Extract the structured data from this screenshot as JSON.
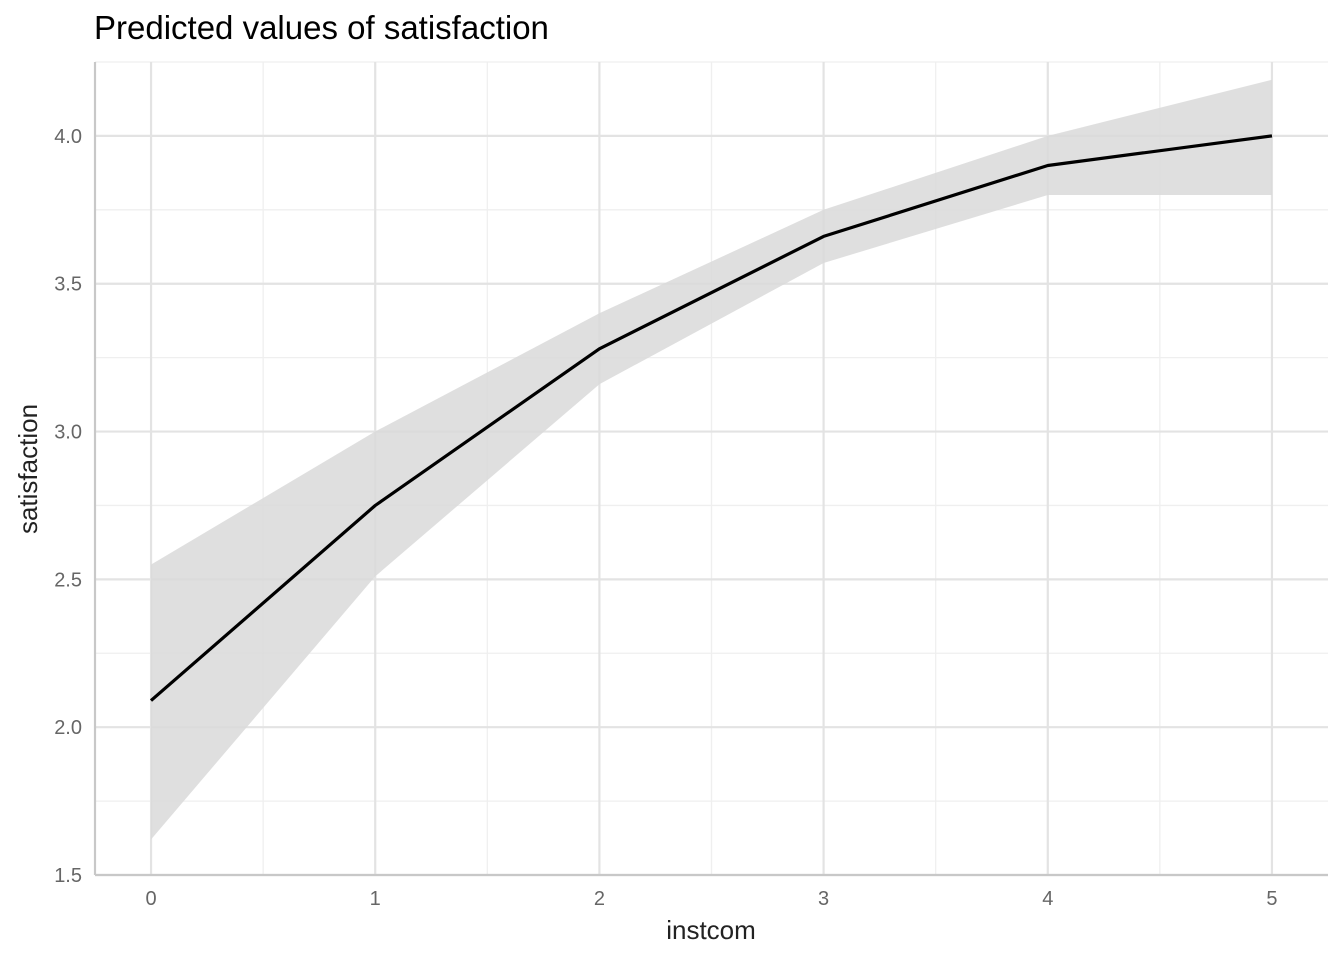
{
  "chart_data": {
    "type": "line",
    "title": "Predicted values of satisfaction",
    "xlabel": "instcom",
    "ylabel": "satisfaction",
    "x": [
      0,
      1,
      2,
      3,
      4,
      5
    ],
    "series": [
      {
        "values": [
          2.09,
          2.75,
          3.28,
          3.66,
          3.9,
          4.0
        ],
        "ci_lower": [
          1.62,
          2.51,
          3.16,
          3.57,
          3.8,
          3.8
        ],
        "ci_upper": [
          2.55,
          3.0,
          3.4,
          3.75,
          4.0,
          4.19
        ],
        "color": "#000000",
        "band_color": "#d9d9d9"
      }
    ],
    "xlim": [
      -0.25,
      5.25
    ],
    "ylim": [
      1.5,
      4.25
    ],
    "x_ticks": [
      0,
      1,
      2,
      3,
      4,
      5
    ],
    "x_tick_labels": [
      "0",
      "1",
      "2",
      "3",
      "4",
      "5"
    ],
    "y_ticks": [
      1.5,
      2.0,
      2.5,
      3.0,
      3.5,
      4.0
    ],
    "y_tick_labels": [
      "1.5",
      "2.0",
      "2.5",
      "3.0",
      "3.5",
      "4.0"
    ],
    "grid": true,
    "legend": "none"
  }
}
